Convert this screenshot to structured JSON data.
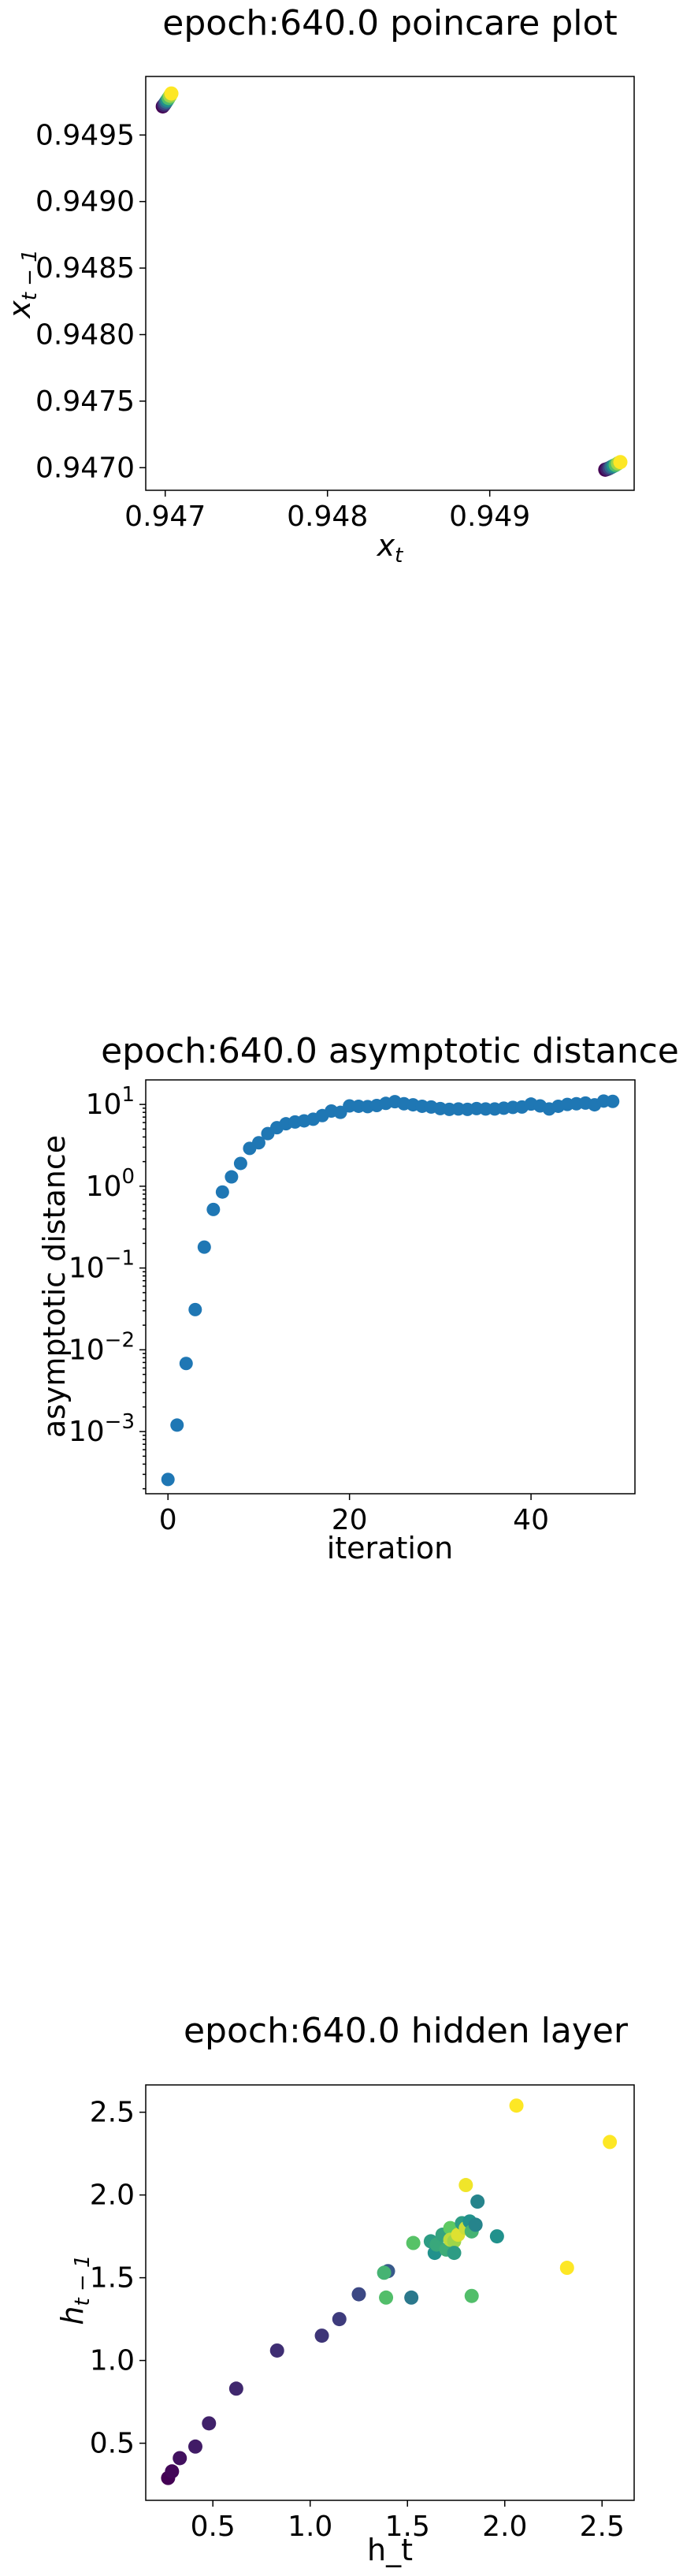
{
  "chart_data": [
    {
      "type": "scatter",
      "title": "epoch:640.0 poincare plot",
      "xlabel_base": "x",
      "xlabel_sub": "t",
      "ylabel_base": "x",
      "ylabel_sub": "t − 1",
      "xlim": [
        0.94688,
        0.94989
      ],
      "ylim": [
        0.94683,
        0.94994
      ],
      "xticks": [
        0.947,
        0.948,
        0.949
      ],
      "xtick_labels": [
        "0.947",
        "0.948",
        "0.949"
      ],
      "yticks": [
        0.947,
        0.9475,
        0.948,
        0.9485,
        0.949,
        0.9495
      ],
      "ytick_labels": [
        "0.9470",
        "0.9475",
        "0.9480",
        "0.9485",
        "0.9490",
        "0.9495"
      ],
      "colormap": "viridis",
      "grid": false,
      "points": [
        {
          "x": 0.946985,
          "y": 0.949715,
          "c": 0.0
        },
        {
          "x": 0.946992,
          "y": 0.949725,
          "c": 0.1
        },
        {
          "x": 0.946999,
          "y": 0.949737,
          "c": 0.2
        },
        {
          "x": 0.947006,
          "y": 0.94975,
          "c": 0.35
        },
        {
          "x": 0.947013,
          "y": 0.949763,
          "c": 0.5
        },
        {
          "x": 0.947021,
          "y": 0.949778,
          "c": 0.7
        },
        {
          "x": 0.94703,
          "y": 0.949795,
          "c": 0.85
        },
        {
          "x": 0.947038,
          "y": 0.949812,
          "c": 1.0
        },
        {
          "x": 0.949712,
          "y": 0.946985,
          "c": 0.0
        },
        {
          "x": 0.949725,
          "y": 0.94699,
          "c": 0.1
        },
        {
          "x": 0.949738,
          "y": 0.946997,
          "c": 0.2
        },
        {
          "x": 0.94975,
          "y": 0.947005,
          "c": 0.35
        },
        {
          "x": 0.949763,
          "y": 0.947013,
          "c": 0.5
        },
        {
          "x": 0.949776,
          "y": 0.947021,
          "c": 0.7
        },
        {
          "x": 0.94979,
          "y": 0.947032,
          "c": 0.85
        },
        {
          "x": 0.949805,
          "y": 0.947042,
          "c": 1.0
        }
      ]
    },
    {
      "type": "scatter",
      "title": "epoch:640.0 asymptotic distance",
      "xlabel": "iteration",
      "ylabel": "asymptotic distance",
      "yscale": "log",
      "xlim": [
        -2.45,
        51.45
      ],
      "ylim_log10": [
        -3.76,
        1.3
      ],
      "xticks": [
        0,
        20,
        40
      ],
      "xtick_labels": [
        "0",
        "20",
        "40"
      ],
      "ytick_exponents": [
        -3,
        -2,
        -1,
        0,
        1
      ],
      "ytick_base": "10",
      "color": "#1f77b4",
      "grid": false,
      "x": [
        0,
        1,
        2,
        3,
        4,
        5,
        6,
        7,
        8,
        9,
        10,
        11,
        12,
        13,
        14,
        15,
        16,
        17,
        18,
        19,
        20,
        21,
        22,
        23,
        24,
        25,
        26,
        27,
        28,
        29,
        30,
        31,
        32,
        33,
        34,
        35,
        36,
        37,
        38,
        39,
        40,
        41,
        42,
        43,
        44,
        45,
        46,
        47,
        48,
        49
      ],
      "y": [
        0.00026,
        0.0012,
        0.0068,
        0.031,
        0.18,
        0.52,
        0.85,
        1.3,
        1.9,
        2.9,
        3.4,
        4.4,
        5.2,
        5.8,
        6.1,
        6.3,
        6.6,
        7.3,
        8.3,
        8.0,
        9.6,
        9.5,
        9.4,
        9.7,
        10.3,
        10.8,
        10.2,
        9.9,
        9.5,
        9.3,
        8.9,
        8.7,
        8.8,
        8.7,
        8.9,
        8.8,
        8.8,
        9.0,
        9.2,
        9.3,
        10.1,
        9.6,
        8.8,
        9.5,
        10.0,
        10.2,
        10.4,
        9.9,
        11.0,
        10.9
      ]
    },
    {
      "type": "scatter",
      "title": "epoch:640.0 hidden layer",
      "xlabel": "h_t",
      "ylabel_base": "h",
      "ylabel_sub": "t − 1",
      "xlim": [
        0.155,
        2.665
      ],
      "ylim": [
        0.155,
        2.665
      ],
      "xticks": [
        0.5,
        1.0,
        1.5,
        2.0,
        2.5
      ],
      "xtick_labels": [
        "0.5",
        "1.0",
        "1.5",
        "2.0",
        "2.5"
      ],
      "yticks": [
        0.5,
        1.0,
        1.5,
        2.0,
        2.5
      ],
      "ytick_labels": [
        "0.5",
        "1.0",
        "1.5",
        "2.0",
        "2.5"
      ],
      "colormap": "viridis",
      "grid": false,
      "points": [
        {
          "x": 0.27,
          "y": 0.29,
          "c": 0.0
        },
        {
          "x": 0.29,
          "y": 0.33,
          "c": 0.02
        },
        {
          "x": 0.33,
          "y": 0.41,
          "c": 0.05
        },
        {
          "x": 0.41,
          "y": 0.48,
          "c": 0.08
        },
        {
          "x": 0.48,
          "y": 0.62,
          "c": 0.1
        },
        {
          "x": 0.62,
          "y": 0.83,
          "c": 0.12
        },
        {
          "x": 0.83,
          "y": 1.06,
          "c": 0.14
        },
        {
          "x": 1.06,
          "y": 1.15,
          "c": 0.16
        },
        {
          "x": 1.15,
          "y": 1.25,
          "c": 0.18
        },
        {
          "x": 1.25,
          "y": 1.4,
          "c": 0.22
        },
        {
          "x": 1.4,
          "y": 1.54,
          "c": 0.28
        },
        {
          "x": 1.38,
          "y": 1.53,
          "c": 0.65
        },
        {
          "x": 1.39,
          "y": 1.38,
          "c": 0.7
        },
        {
          "x": 1.52,
          "y": 1.38,
          "c": 0.4
        },
        {
          "x": 1.53,
          "y": 1.71,
          "c": 0.72
        },
        {
          "x": 1.62,
          "y": 1.72,
          "c": 0.55
        },
        {
          "x": 1.64,
          "y": 1.65,
          "c": 0.5
        },
        {
          "x": 1.65,
          "y": 1.7,
          "c": 0.6
        },
        {
          "x": 1.68,
          "y": 1.76,
          "c": 0.58
        },
        {
          "x": 1.7,
          "y": 1.67,
          "c": 0.62
        },
        {
          "x": 1.72,
          "y": 1.8,
          "c": 0.75
        },
        {
          "x": 1.72,
          "y": 1.73,
          "c": 0.9
        },
        {
          "x": 1.74,
          "y": 1.72,
          "c": 0.85
        },
        {
          "x": 1.74,
          "y": 1.65,
          "c": 0.55
        },
        {
          "x": 1.76,
          "y": 1.76,
          "c": 0.95
        },
        {
          "x": 1.78,
          "y": 1.83,
          "c": 0.55
        },
        {
          "x": 1.8,
          "y": 1.8,
          "c": 0.92
        },
        {
          "x": 1.82,
          "y": 1.84,
          "c": 0.5
        },
        {
          "x": 1.83,
          "y": 1.78,
          "c": 0.65
        },
        {
          "x": 1.85,
          "y": 1.82,
          "c": 0.45
        },
        {
          "x": 1.86,
          "y": 1.96,
          "c": 0.45
        },
        {
          "x": 1.8,
          "y": 2.06,
          "c": 0.98
        },
        {
          "x": 1.83,
          "y": 1.39,
          "c": 0.7
        },
        {
          "x": 1.96,
          "y": 1.75,
          "c": 0.5
        },
        {
          "x": 2.06,
          "y": 2.54,
          "c": 1.0
        },
        {
          "x": 2.32,
          "y": 1.56,
          "c": 1.0
        },
        {
          "x": 2.54,
          "y": 2.32,
          "c": 1.0
        }
      ]
    }
  ]
}
